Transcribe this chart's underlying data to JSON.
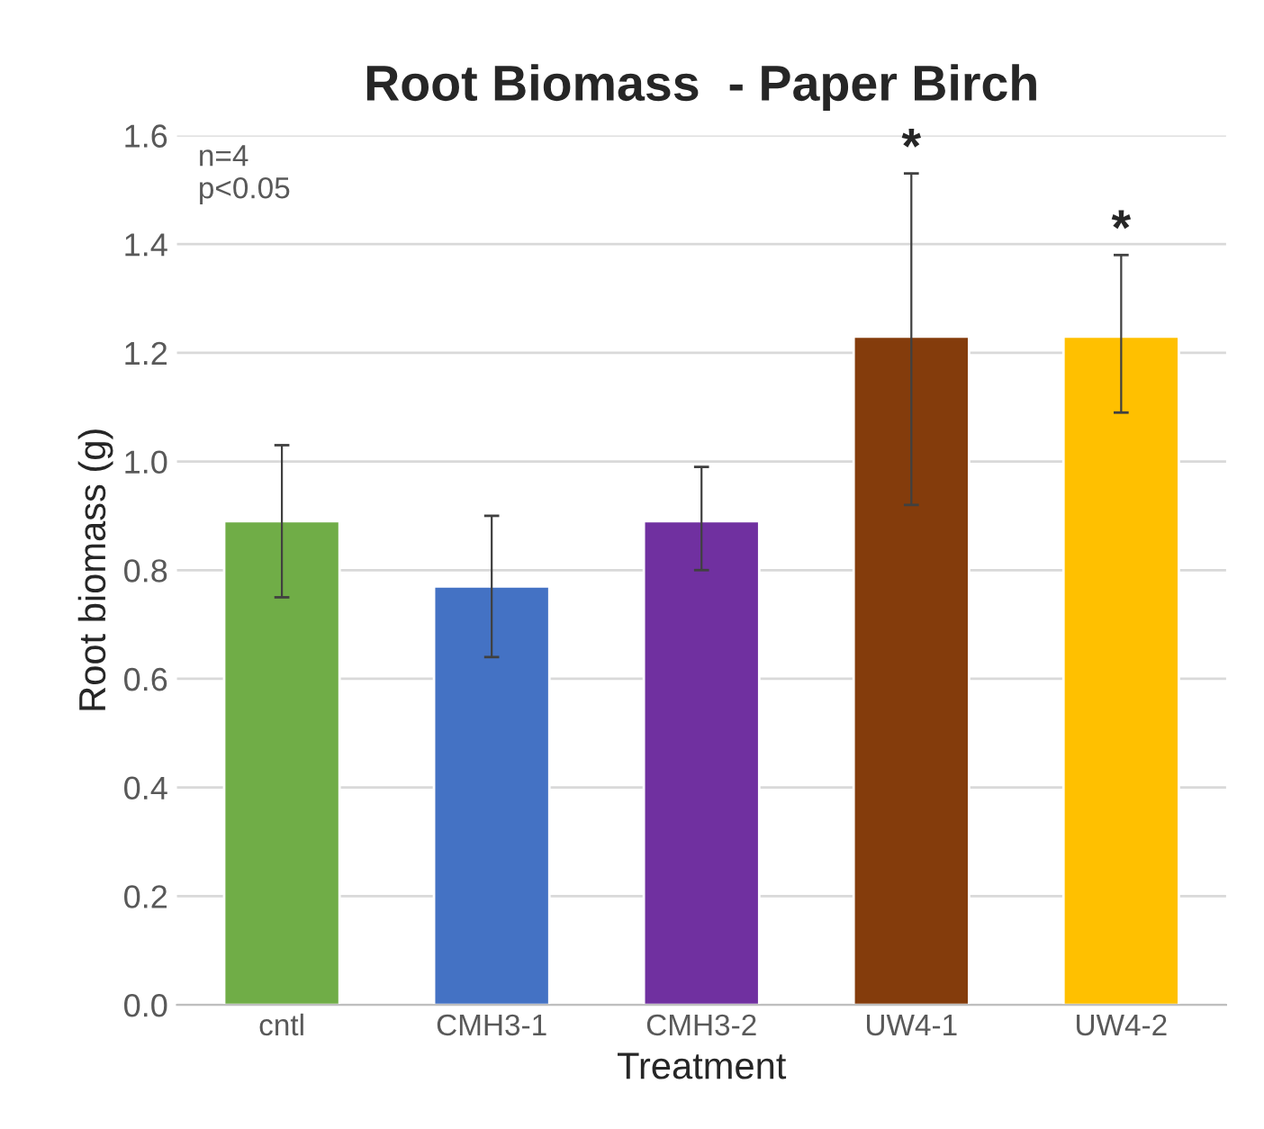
{
  "chart_data": {
    "type": "bar",
    "title": "Root Biomass  - Paper Birch",
    "xlabel": "Treatment",
    "ylabel": "Root biomass (g)",
    "categories": [
      "cntl",
      "CMH3-1",
      "CMH3-2",
      "UW4-1",
      "UW4-2"
    ],
    "values": [
      0.89,
      0.77,
      0.89,
      1.23,
      1.23
    ],
    "colors": [
      "#70ad47",
      "#4472c4",
      "#7030a0",
      "#843c0c",
      "#ffc000"
    ],
    "errors": [
      [
        0.75,
        1.03
      ],
      [
        0.64,
        0.9
      ],
      [
        0.8,
        0.99
      ],
      [
        0.92,
        1.53
      ],
      [
        1.09,
        1.38
      ]
    ],
    "ylim": [
      0,
      1.6
    ],
    "yticks": [
      {
        "value": 0,
        "label": "0.0"
      },
      {
        "value": 0.2,
        "label": "0.2"
      },
      {
        "value": 0.4,
        "label": "0.4"
      },
      {
        "value": 0.6,
        "label": "0.6"
      },
      {
        "value": 0.8,
        "label": "0.8"
      },
      {
        "value": 1.0,
        "label": "1.0"
      },
      {
        "value": 1.2,
        "label": "1.2"
      },
      {
        "value": 1.4,
        "label": "1.4"
      },
      {
        "value": 1.6,
        "label": "1.6"
      }
    ],
    "grid": "y",
    "annotations": [
      "n=4\np<0.05",
      {
        "text": "*",
        "x": "UW4-1",
        "y": 1.53
      },
      {
        "text": "*",
        "x": "UW4-2",
        "y": 1.38
      }
    ]
  }
}
